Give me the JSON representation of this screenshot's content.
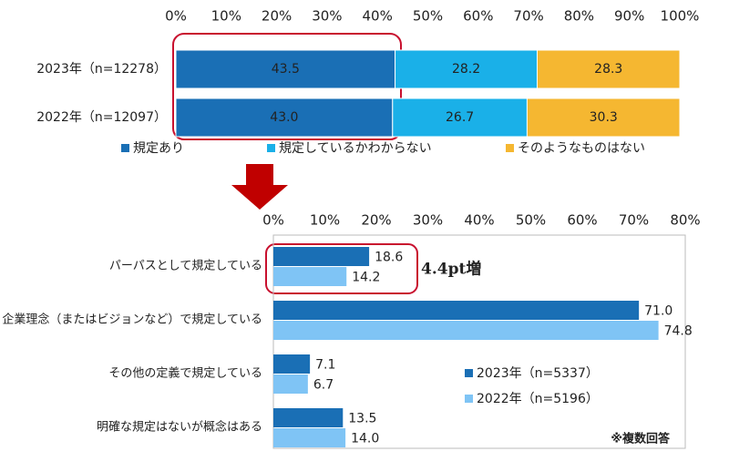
{
  "chart_data": [
    {
      "type": "stacked_bar",
      "categories": [
        "2023年（n=12278）",
        "2022年（n=12097）"
      ],
      "series": [
        {
          "name": "規定あり",
          "color": "#1a6fb5",
          "values": [
            43.5,
            43.0
          ],
          "value_labels": [
            "43.5",
            "43.0"
          ]
        },
        {
          "name": "規定しているかわからない",
          "color": "#1ab0e8",
          "values": [
            28.2,
            26.7
          ],
          "value_labels": [
            "28.2",
            "26.7"
          ]
        },
        {
          "name": "そのようなものはない",
          "color": "#f5b731",
          "values": [
            28.3,
            30.3
          ],
          "value_labels": [
            "28.3",
            "30.3"
          ]
        }
      ],
      "xlim": [
        0,
        100
      ],
      "xticks": [
        {
          "value": 0,
          "label": "0%"
        },
        {
          "value": 10,
          "label": "10%"
        },
        {
          "value": 20,
          "label": "20%"
        },
        {
          "value": 30,
          "label": "30%"
        },
        {
          "value": 40,
          "label": "40%"
        },
        {
          "value": 50,
          "label": "50%"
        },
        {
          "value": 60,
          "label": "60%"
        },
        {
          "value": 70,
          "label": "70%"
        },
        {
          "value": 80,
          "label": "80%"
        },
        {
          "value": 90,
          "label": "90%"
        },
        {
          "value": 100,
          "label": "100%"
        }
      ],
      "grid": false,
      "legend": "bottom"
    },
    {
      "type": "grouped_bar",
      "categories": [
        "パーパスとして規定している",
        "企業理念（またはビジョンなど）で規定している",
        "その他の定義で規定している",
        "明確な規定はないが概念はある"
      ],
      "series": [
        {
          "name": "2023年（n=5337）",
          "color": "#1a6fb5",
          "values": [
            18.6,
            71.0,
            7.1,
            13.5
          ],
          "value_labels": [
            "18.6",
            "71.0",
            "7.1",
            "13.5"
          ]
        },
        {
          "name": "2022年（n=5196）",
          "color": "#7fc4f5",
          "values": [
            14.2,
            74.8,
            6.7,
            14.0
          ],
          "value_labels": [
            "14.2",
            "74.8",
            "6.7",
            "14.0"
          ]
        }
      ],
      "xlim": [
        0,
        80
      ],
      "xticks": [
        {
          "value": 0,
          "label": "0%"
        },
        {
          "value": 10,
          "label": "10%"
        },
        {
          "value": 20,
          "label": "20%"
        },
        {
          "value": 30,
          "label": "30%"
        },
        {
          "value": 40,
          "label": "40%"
        },
        {
          "value": 50,
          "label": "50%"
        },
        {
          "value": 60,
          "label": "60%"
        },
        {
          "value": 70,
          "label": "70%"
        },
        {
          "value": 80,
          "label": "80%"
        }
      ],
      "grid": false,
      "legend": "inside-right",
      "annotations": [
        "4.4pt増",
        "※複数回答"
      ]
    }
  ]
}
